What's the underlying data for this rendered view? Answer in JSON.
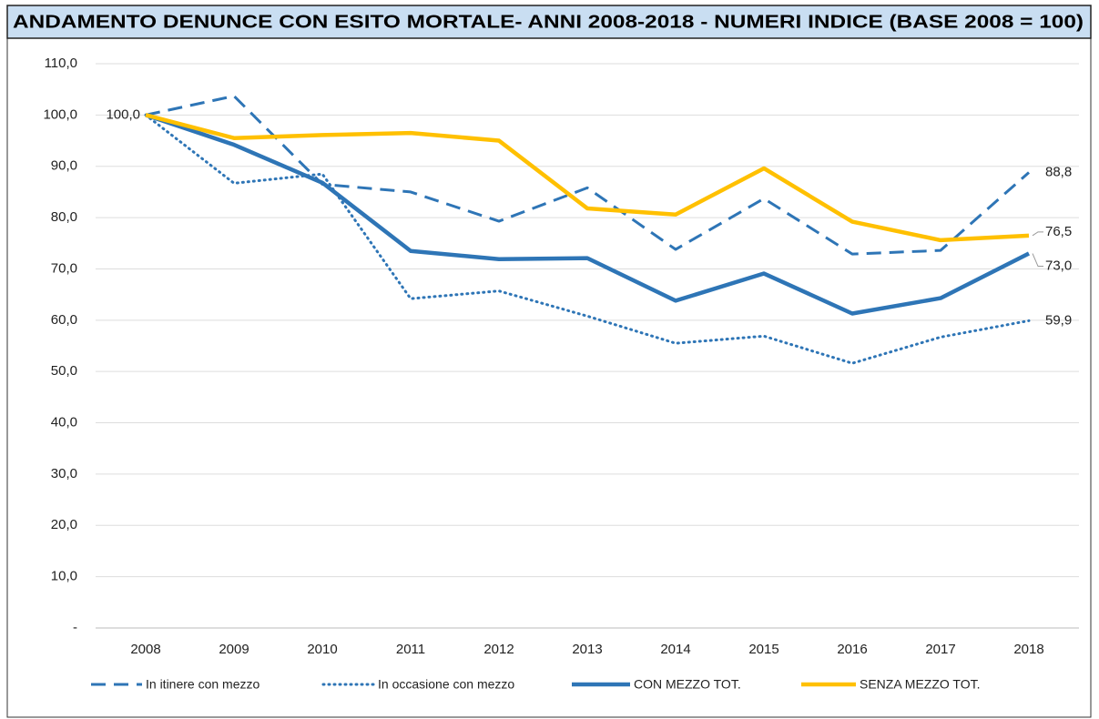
{
  "chart_data": {
    "type": "line",
    "title": "ANDAMENTO DENUNCE CON ESITO MORTALE- ANNI 2008-2018 - NUMERI INDICE (BASE 2008 = 100)",
    "categories": [
      "2008",
      "2009",
      "2010",
      "2011",
      "2012",
      "2013",
      "2014",
      "2015",
      "2016",
      "2017",
      "2018"
    ],
    "series": [
      {
        "name": "In itinere con mezzo",
        "color": "#2e75b6",
        "style": "dashed",
        "values": [
          100,
          103.7,
          86.5,
          85,
          79.3,
          85.8,
          73.8,
          83.7,
          72.9,
          73.6,
          88.8
        ],
        "value_labels": [
          "100,0",
          null,
          null,
          null,
          null,
          null,
          null,
          null,
          null,
          null,
          "88,8"
        ]
      },
      {
        "name": "In occasione con mezzo",
        "color": "#2e75b6",
        "style": "dotted",
        "values": [
          100,
          86.7,
          88.5,
          64.2,
          65.7,
          60.8,
          55.5,
          56.9,
          51.6,
          56.7,
          59.9
        ],
        "value_labels": [
          null,
          null,
          null,
          null,
          null,
          null,
          null,
          null,
          null,
          null,
          "59,9"
        ]
      },
      {
        "name": "CON MEZZO TOT.",
        "color": "#2e75b6",
        "style": "solid",
        "values": [
          100,
          94.2,
          86.8,
          73.5,
          71.9,
          72.1,
          63.8,
          69.1,
          61.3,
          64.3,
          73.0
        ],
        "value_labels": [
          null,
          null,
          null,
          null,
          null,
          null,
          null,
          null,
          null,
          null,
          "73,0"
        ]
      },
      {
        "name": "SENZA MEZZO TOT.",
        "color": "#ffc000",
        "style": "solid",
        "values": [
          100,
          95.5,
          96.1,
          96.5,
          95,
          81.8,
          80.6,
          89.6,
          79.2,
          75.6,
          76.5
        ],
        "value_labels": [
          null,
          null,
          null,
          null,
          null,
          null,
          null,
          null,
          null,
          null,
          "76,5"
        ]
      }
    ],
    "ylim": [
      0,
      110
    ],
    "yticks": [
      {
        "value": 0,
        "label": "-"
      },
      {
        "value": 10,
        "label": "10,0"
      },
      {
        "value": 20,
        "label": "20,0"
      },
      {
        "value": 30,
        "label": "30,0"
      },
      {
        "value": 40,
        "label": "40,0"
      },
      {
        "value": 50,
        "label": "50,0"
      },
      {
        "value": 60,
        "label": "60,0"
      },
      {
        "value": 70,
        "label": "70,0"
      },
      {
        "value": 80,
        "label": "80,0"
      },
      {
        "value": 90,
        "label": "90,0"
      },
      {
        "value": 100,
        "label": "100,0"
      },
      {
        "value": 110,
        "label": "110,0"
      }
    ],
    "grid": true,
    "legend": "bottom"
  }
}
